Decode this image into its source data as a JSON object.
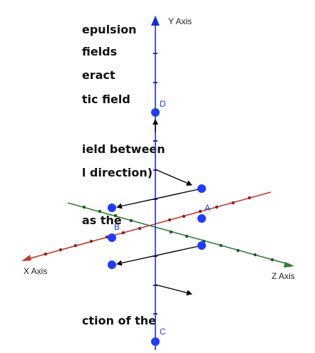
{
  "text_fragments": [
    "epulsion",
    " fields",
    "eract",
    "tic field",
    "ield between",
    "l direction)",
    "as the",
    "ction of the"
  ],
  "axes": {
    "y_label": "Y Axis",
    "x_label": "X Axis",
    "z_label": "Z Axis",
    "y_color": "#1a2fd1",
    "x_color": "#c0392b",
    "z_color": "#2e7d32"
  },
  "points": {
    "a": "A",
    "b": "B",
    "c": "C",
    "d": "D"
  },
  "colors": {
    "point": "#1e3cff",
    "arrow": "#000000"
  }
}
